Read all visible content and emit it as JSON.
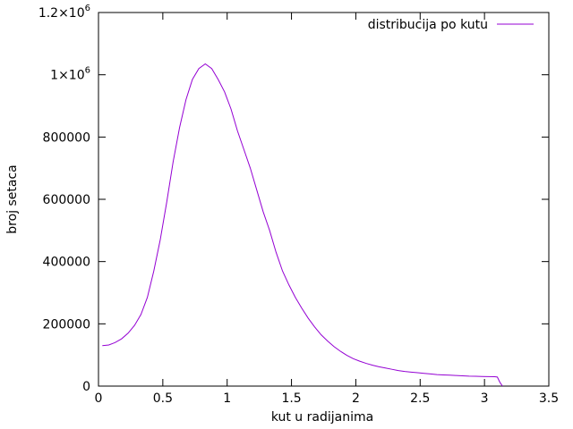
{
  "chart_data": {
    "type": "line",
    "xlabel": "kut u radijanima",
    "ylabel": "broj setaca",
    "xlim": [
      0,
      3.5
    ],
    "ylim": [
      0,
      1200000
    ],
    "x_ticks": [
      0,
      0.5,
      1,
      1.5,
      2,
      2.5,
      3,
      3.5
    ],
    "x_tick_labels": [
      "0",
      "0.5",
      "1",
      "1.5",
      "2",
      "2.5",
      "3",
      "3.5"
    ],
    "y_ticks": [
      0,
      200000,
      400000,
      600000,
      800000,
      1000000,
      1200000
    ],
    "y_tick_labels": [
      "0",
      "200000",
      "400000",
      "600000",
      "800000",
      "1×10^6",
      "1.2×10^6"
    ],
    "grid": false,
    "legend_position": "top-right",
    "series": [
      {
        "name": "distribucija po kutu",
        "color": "#9400d3",
        "x": [
          0.03,
          0.08,
          0.13,
          0.18,
          0.23,
          0.28,
          0.33,
          0.38,
          0.43,
          0.48,
          0.53,
          0.58,
          0.63,
          0.68,
          0.73,
          0.78,
          0.83,
          0.88,
          0.93,
          0.98,
          1.03,
          1.08,
          1.13,
          1.18,
          1.23,
          1.28,
          1.33,
          1.38,
          1.43,
          1.48,
          1.53,
          1.58,
          1.63,
          1.68,
          1.73,
          1.78,
          1.83,
          1.88,
          1.93,
          1.98,
          2.03,
          2.08,
          2.13,
          2.18,
          2.23,
          2.28,
          2.33,
          2.38,
          2.43,
          2.48,
          2.53,
          2.58,
          2.63,
          2.68,
          2.73,
          2.78,
          2.83,
          2.88,
          2.93,
          2.98,
          3.03,
          3.08,
          3.1,
          3.12,
          3.14
        ],
        "y": [
          130000,
          132000,
          140000,
          152000,
          170000,
          195000,
          230000,
          285000,
          370000,
          470000,
          590000,
          720000,
          830000,
          920000,
          985000,
          1020000,
          1035000,
          1020000,
          985000,
          945000,
          890000,
          820000,
          760000,
          700000,
          630000,
          560000,
          500000,
          430000,
          370000,
          325000,
          285000,
          250000,
          218000,
          190000,
          165000,
          145000,
          127000,
          112000,
          99000,
          88000,
          80000,
          73000,
          67000,
          62000,
          58000,
          54000,
          50000,
          47000,
          45000,
          43000,
          41000,
          39000,
          37000,
          36000,
          35000,
          34000,
          33000,
          32000,
          31500,
          31000,
          30500,
          30000,
          29000,
          12000,
          0
        ]
      }
    ]
  }
}
